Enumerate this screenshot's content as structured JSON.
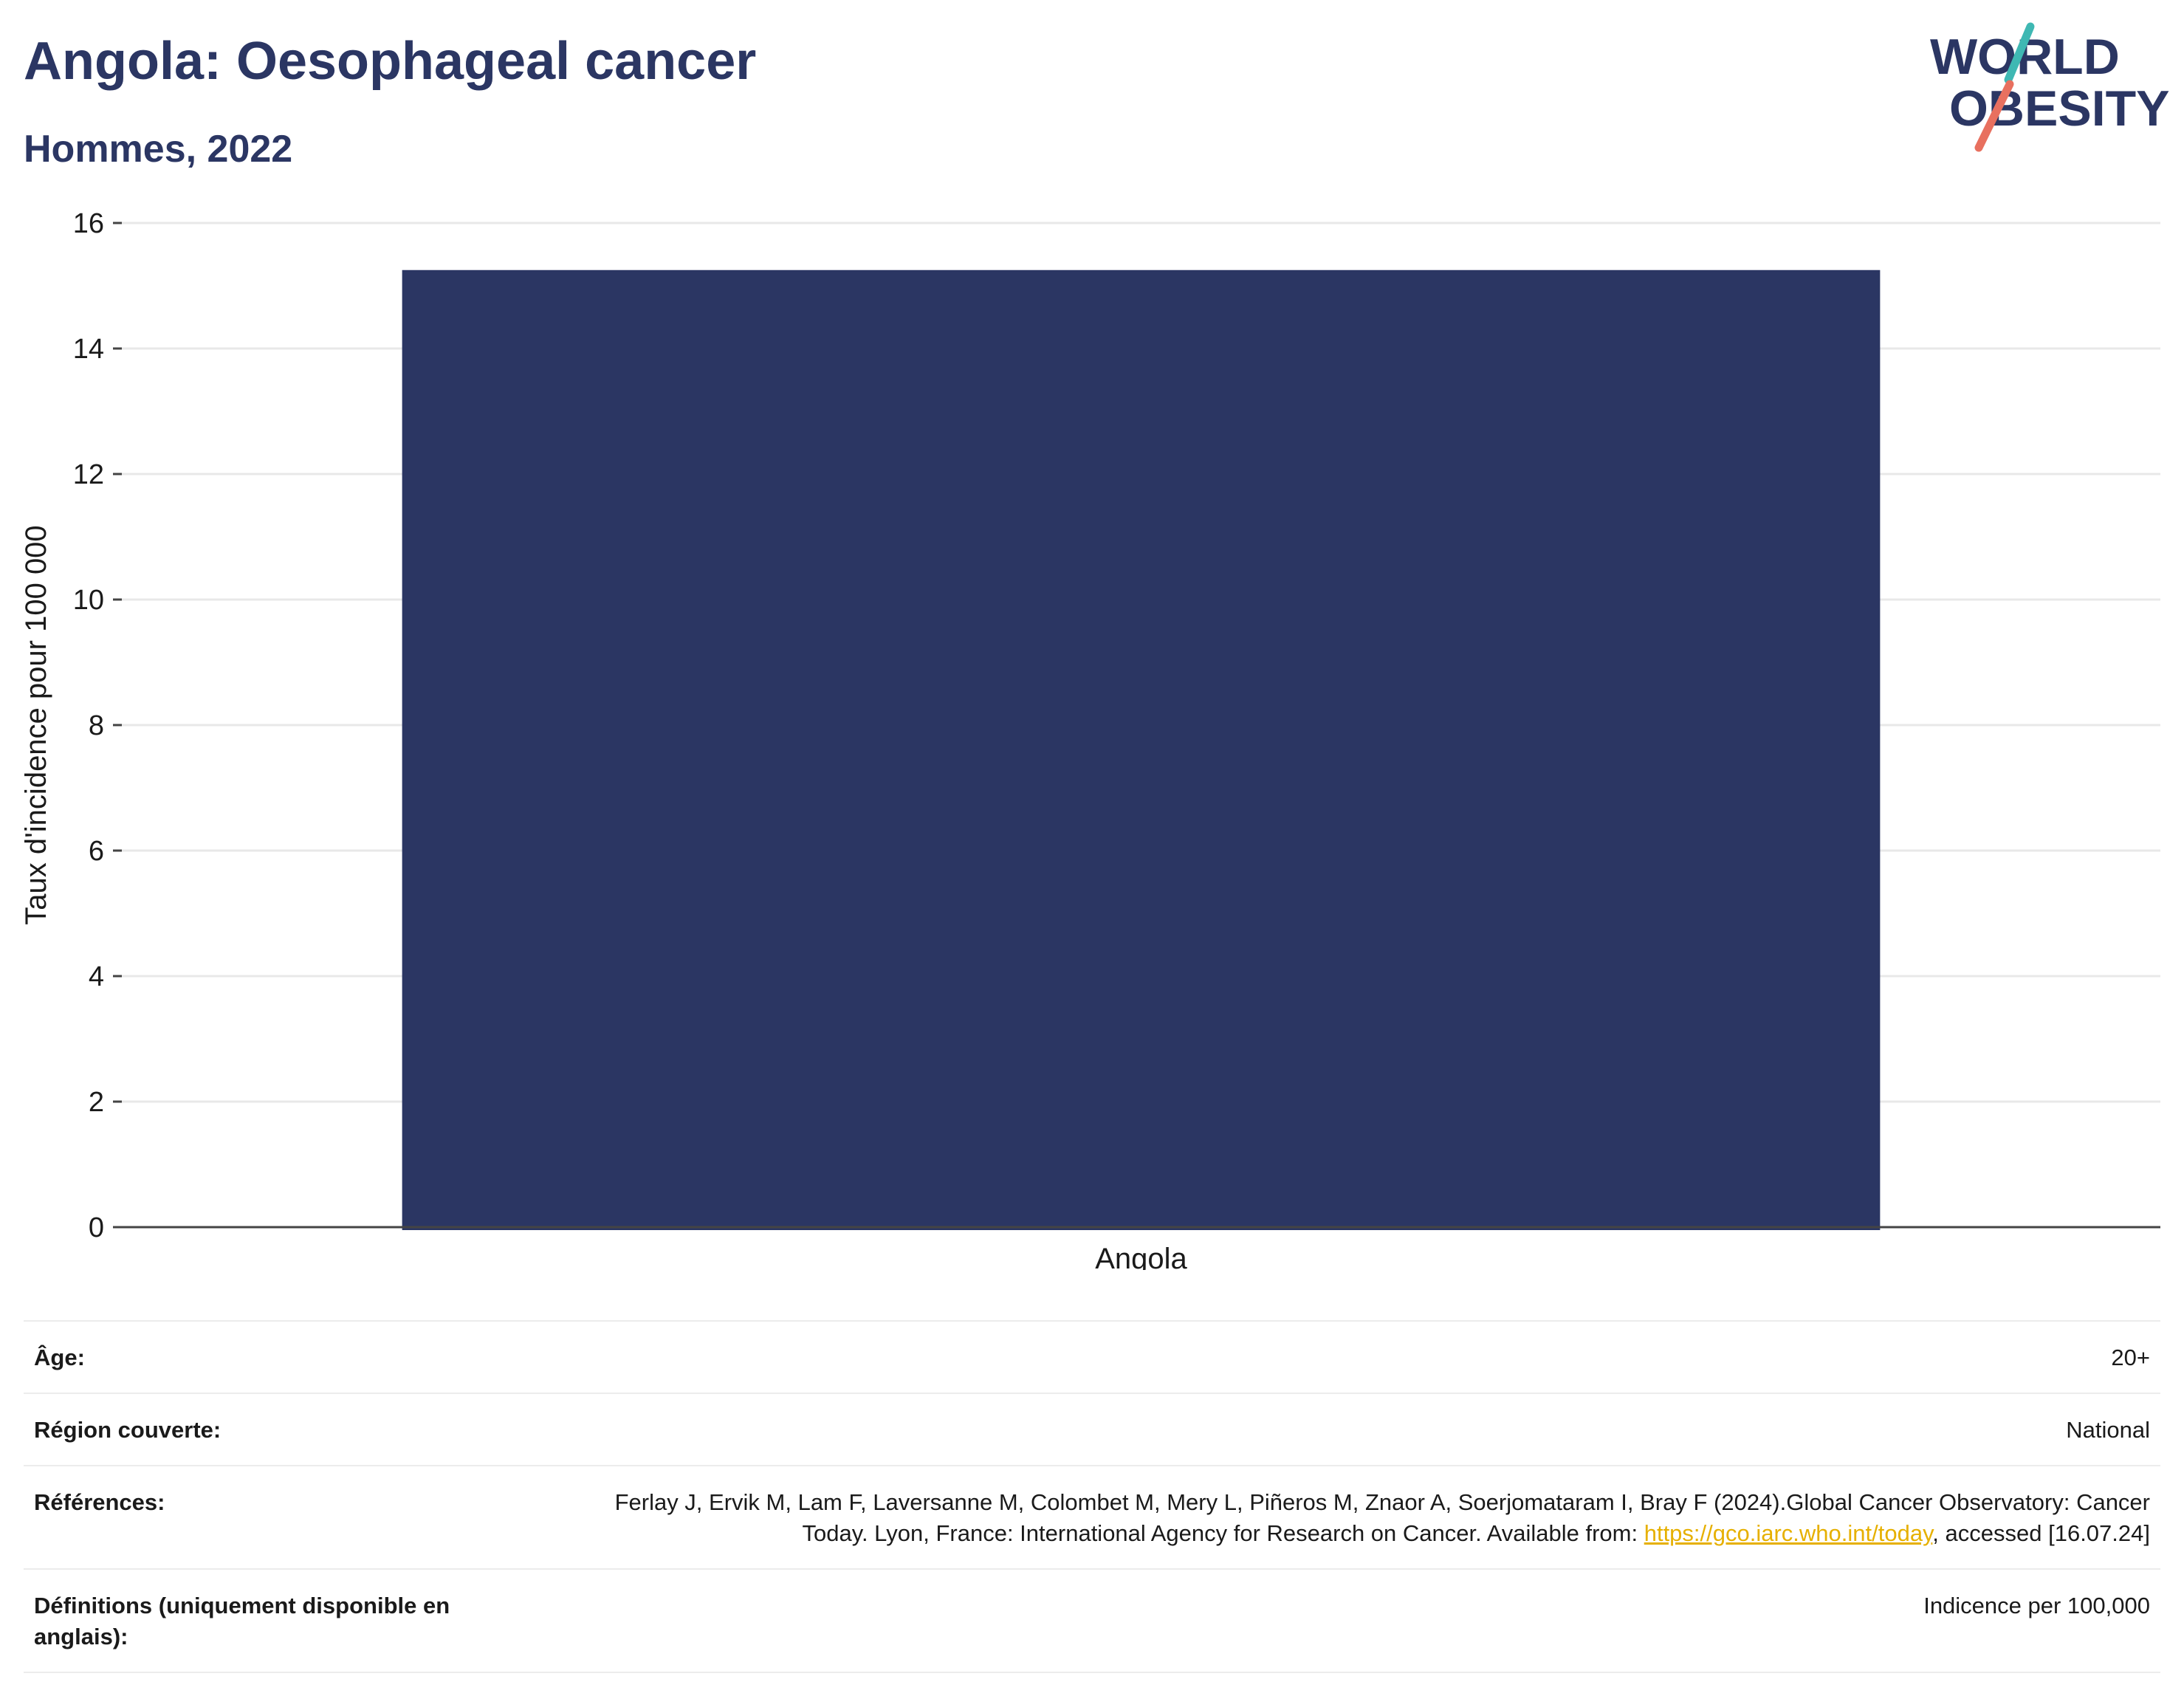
{
  "header": {
    "title": "Angola: Oesophageal cancer",
    "subtitle": "Hommes, 2022"
  },
  "logo": {
    "line1": "WORLD",
    "line2": "OBESITY",
    "slash_colors": [
      "#3fb8b3",
      "#e8705f"
    ],
    "text_color": "#2b3663"
  },
  "chart_data": {
    "type": "bar",
    "categories": [
      "Angola"
    ],
    "values": [
      15.25
    ],
    "title": "Angola: Oesophageal cancer",
    "subtitle": "Hommes, 2022",
    "xlabel": "",
    "ylabel": "Taux d'incidence pour 100 000",
    "ylim": [
      0,
      16
    ],
    "yticks": [
      0,
      2,
      4,
      6,
      8,
      10,
      12,
      14,
      16
    ],
    "grid": true,
    "legend": "none",
    "bar_color": "#2b3663"
  },
  "info": {
    "age_label": "Âge:",
    "age_value": "20+",
    "region_label": "Région couverte:",
    "region_value": "National",
    "references_label": "Références:",
    "references_text": "Ferlay J, Ervik M, Lam F, Laversanne M, Colombet M, Mery L, Piñeros M, Znaor A, Soerjomataram I, Bray F (2024).Global Cancer Observatory: Cancer Today. Lyon, France: International Agency for Research on Cancer. Available from: ",
    "references_link": "https://gco.iarc.who.int/today",
    "references_tail": ", accessed [16.07.24]",
    "definitions_label": "Définitions (uniquement disponible en anglais):",
    "definitions_value": "Indicence per 100,000"
  }
}
